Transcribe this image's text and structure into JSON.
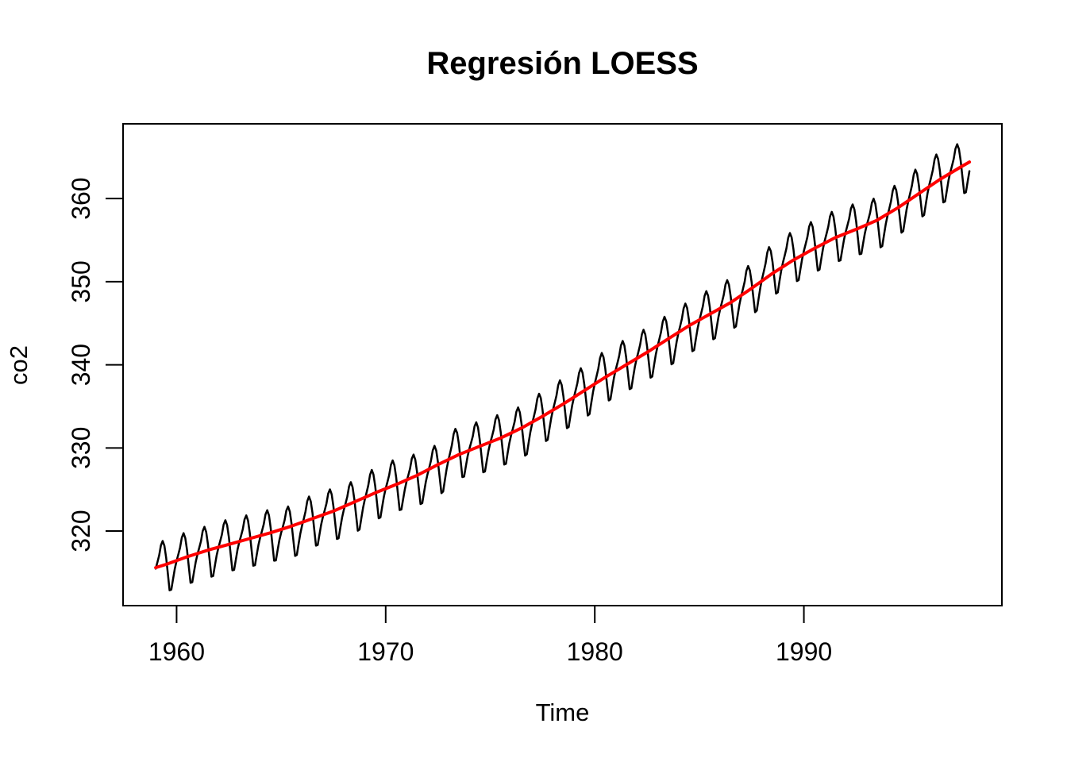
{
  "chart_data": {
    "type": "line",
    "title": "Regresión LOESS",
    "xlabel": "Time",
    "ylabel": "co2",
    "xlim": [
      1957.44,
      1999.47
    ],
    "ylim": [
      311.03,
      368.99
    ],
    "xticks": [
      1960,
      1970,
      1980,
      1990
    ],
    "yticks": [
      320,
      330,
      340,
      350,
      360
    ],
    "grid": false,
    "legend": "none",
    "background": "#ffffff",
    "axis_color": "#000000",
    "series": [
      {
        "name": "co2 observed monthly",
        "color": "#000000",
        "line_width": 2.5,
        "kind": "monthly"
      },
      {
        "name": "LOESS fit",
        "color": "#ff0000",
        "line_width": 4,
        "kind": "smooth"
      }
    ],
    "x_start": 1959.0,
    "x_end": 1997.9167,
    "points_per_year": 12,
    "years": [
      1959,
      1960,
      1961,
      1962,
      1963,
      1964,
      1965,
      1966,
      1967,
      1968,
      1969,
      1970,
      1971,
      1972,
      1973,
      1974,
      1975,
      1976,
      1977,
      1978,
      1979,
      1980,
      1981,
      1982,
      1983,
      1984,
      1985,
      1986,
      1987,
      1988,
      1989,
      1990,
      1991,
      1992,
      1993,
      1994,
      1995,
      1996,
      1997
    ],
    "annual_mean_co2": [
      315.98,
      316.91,
      317.64,
      318.45,
      318.99,
      319.62,
      320.04,
      321.38,
      322.16,
      323.04,
      324.62,
      325.68,
      326.32,
      327.45,
      329.68,
      330.18,
      331.11,
      332.04,
      333.83,
      335.4,
      336.84,
      338.75,
      340.11,
      341.45,
      343.05,
      344.65,
      346.12,
      347.42,
      349.19,
      351.57,
      353.12,
      354.39,
      355.61,
      356.45,
      357.1,
      358.83,
      360.82,
      362.61,
      363.73
    ],
    "seasonal_offsets_by_month": [
      -0.04,
      0.66,
      1.41,
      2.54,
      2.99,
      2.32,
      0.8,
      -1.23,
      -3.26,
      -3.25,
      -2.05,
      -0.9
    ],
    "loess_points": [
      [
        1959.0,
        315.6
      ],
      [
        1959.5,
        316.0
      ],
      [
        1960.5,
        316.9
      ],
      [
        1961.5,
        317.7
      ],
      [
        1962.5,
        318.4
      ],
      [
        1963.5,
        319.1
      ],
      [
        1964.5,
        319.8
      ],
      [
        1965.5,
        320.6
      ],
      [
        1966.5,
        321.5
      ],
      [
        1967.5,
        322.4
      ],
      [
        1968.5,
        323.5
      ],
      [
        1969.5,
        324.6
      ],
      [
        1970.5,
        325.6
      ],
      [
        1971.5,
        326.7
      ],
      [
        1972.5,
        328.0
      ],
      [
        1973.5,
        329.2
      ],
      [
        1974.5,
        330.2
      ],
      [
        1975.5,
        331.2
      ],
      [
        1976.5,
        332.4
      ],
      [
        1977.5,
        333.8
      ],
      [
        1978.5,
        335.3
      ],
      [
        1979.5,
        336.9
      ],
      [
        1980.5,
        338.5
      ],
      [
        1981.5,
        340.0
      ],
      [
        1982.5,
        341.5
      ],
      [
        1983.5,
        343.1
      ],
      [
        1984.5,
        344.7
      ],
      [
        1985.5,
        346.1
      ],
      [
        1986.5,
        347.5
      ],
      [
        1987.5,
        349.2
      ],
      [
        1988.5,
        351.0
      ],
      [
        1989.5,
        352.6
      ],
      [
        1990.5,
        354.0
      ],
      [
        1991.5,
        355.3
      ],
      [
        1992.5,
        356.3
      ],
      [
        1993.5,
        357.4
      ],
      [
        1994.5,
        358.9
      ],
      [
        1995.5,
        360.6
      ],
      [
        1996.5,
        362.3
      ],
      [
        1997.5,
        363.8
      ],
      [
        1997.9167,
        364.4
      ]
    ]
  }
}
